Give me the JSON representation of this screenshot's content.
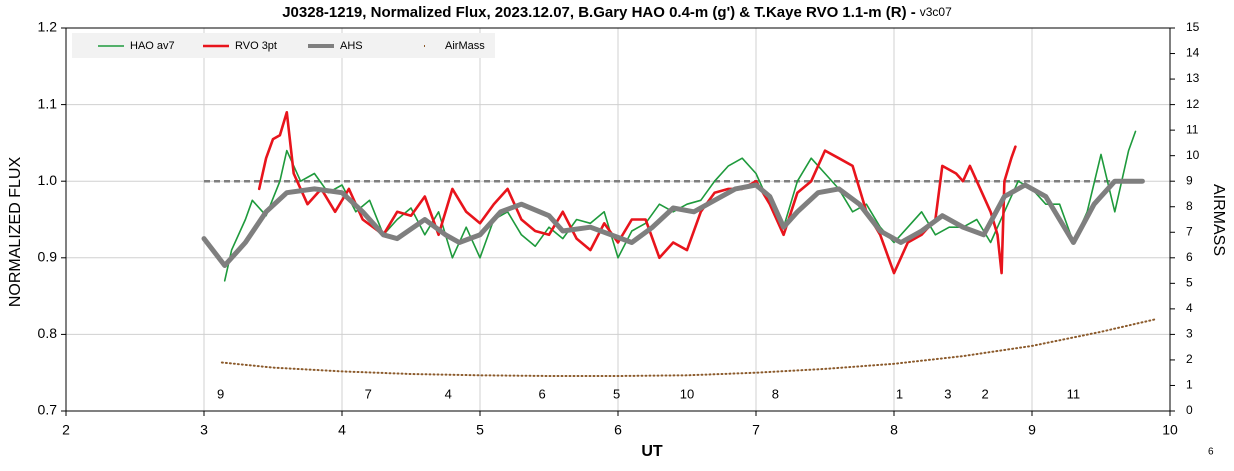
{
  "chart_data": {
    "type": "line",
    "title": "J0328-1219, Normalized Flux, 2023.12.07, B.Gary HAO 0.4-m (g') & T.Kaye RVO 1.1-m (R) -",
    "version": "v3c07",
    "x_label": "UT",
    "y_label": "NORMALIZED FLUX",
    "y2_label": "AIRMASS",
    "corner_note": "6",
    "xlim": [
      2,
      10
    ],
    "xticks": [
      2,
      3,
      4,
      5,
      6,
      7,
      8,
      9,
      10
    ],
    "ylim": [
      0.7,
      1.2
    ],
    "yticks": [
      0.7,
      0.8,
      0.9,
      {
        "value": 1,
        "label": "1.0"
      },
      1.1,
      1.2
    ],
    "y2lim": [
      0,
      15
    ],
    "y2ticks": [
      0,
      1,
      2,
      3,
      4,
      5,
      6,
      7,
      8,
      9,
      10,
      11,
      12,
      13,
      14,
      15
    ],
    "grid": true,
    "legend": "top-left",
    "reference": {
      "y": 1,
      "x": [
        3,
        9.8
      ],
      "color": "#7f7f7f"
    },
    "series": [
      {
        "name": "HAO av7",
        "color": "#1e9a3c",
        "width": 1.6,
        "x": [
          3.15,
          3.2,
          3.3,
          3.35,
          3.45,
          3.55,
          3.6,
          3.7,
          3.8,
          3.9,
          4.0,
          4.1,
          4.2,
          4.3,
          4.4,
          4.5,
          4.6,
          4.7,
          4.8,
          4.9,
          5.0,
          5.1,
          5.2,
          5.3,
          5.4,
          5.5,
          5.6,
          5.7,
          5.8,
          5.9,
          6.0,
          6.1,
          6.2,
          6.3,
          6.4,
          6.5,
          6.6,
          6.7,
          6.8,
          6.9,
          7.0,
          7.1,
          7.2,
          7.3,
          7.4,
          7.5,
          7.6,
          7.7,
          7.8,
          7.9,
          8.0,
          8.1,
          8.2,
          8.3,
          8.4,
          8.5,
          8.6,
          8.7,
          8.8,
          8.9,
          9.0,
          9.1,
          9.2,
          9.3,
          9.4,
          9.5,
          9.6,
          9.7,
          9.75
        ],
        "values": [
          0.87,
          0.91,
          0.95,
          0.975,
          0.955,
          1.0,
          1.04,
          1.0,
          1.01,
          0.985,
          0.995,
          0.96,
          0.975,
          0.93,
          0.95,
          0.965,
          0.93,
          0.96,
          0.9,
          0.94,
          0.9,
          0.95,
          0.96,
          0.93,
          0.915,
          0.94,
          0.925,
          0.95,
          0.945,
          0.96,
          0.9,
          0.935,
          0.945,
          0.97,
          0.96,
          0.97,
          0.975,
          1.0,
          1.02,
          1.03,
          1.01,
          0.97,
          0.94,
          1.0,
          1.03,
          1.01,
          0.99,
          0.96,
          0.97,
          0.94,
          0.92,
          0.94,
          0.96,
          0.93,
          0.94,
          0.94,
          0.95,
          0.92,
          0.96,
          1.0,
          0.99,
          0.97,
          0.97,
          0.92,
          0.96,
          1.035,
          0.96,
          1.04,
          1.065
        ]
      },
      {
        "name": "RVO 3pt",
        "color": "#e8141c",
        "width": 2.6,
        "x": [
          3.4,
          3.45,
          3.5,
          3.55,
          3.6,
          3.65,
          3.75,
          3.85,
          3.95,
          4.05,
          4.15,
          4.3,
          4.4,
          4.5,
          4.6,
          4.7,
          4.8,
          4.9,
          5.0,
          5.1,
          5.2,
          5.3,
          5.4,
          5.5,
          5.6,
          5.7,
          5.8,
          5.9,
          6.0,
          6.1,
          6.2,
          6.3,
          6.4,
          6.5,
          6.6,
          6.7,
          6.8,
          6.9,
          7.0,
          7.1,
          7.2,
          7.3,
          7.4,
          7.5,
          7.6,
          7.7,
          7.8,
          7.9,
          8.0,
          8.1,
          8.2,
          8.3,
          8.35,
          8.45,
          8.5,
          8.55,
          8.6,
          8.7,
          8.75,
          8.78,
          8.8,
          8.85,
          8.88
        ],
        "values": [
          0.99,
          1.03,
          1.055,
          1.06,
          1.09,
          1.01,
          0.97,
          0.99,
          0.96,
          0.99,
          0.95,
          0.93,
          0.96,
          0.955,
          0.98,
          0.93,
          0.99,
          0.96,
          0.945,
          0.97,
          0.99,
          0.95,
          0.935,
          0.93,
          0.96,
          0.925,
          0.91,
          0.945,
          0.92,
          0.95,
          0.95,
          0.9,
          0.92,
          0.91,
          0.96,
          0.985,
          0.99,
          0.99,
          1.0,
          0.97,
          0.93,
          0.985,
          1.0,
          1.04,
          1.03,
          1.02,
          0.96,
          0.93,
          0.88,
          0.92,
          0.93,
          0.95,
          1.02,
          1.01,
          1.0,
          1.02,
          1.0,
          0.96,
          0.93,
          0.88,
          1.0,
          1.03,
          1.045
        ]
      },
      {
        "name": "AHS",
        "color": "#7f7f7f",
        "width": 5,
        "x": [
          3.0,
          3.15,
          3.3,
          3.45,
          3.6,
          3.8,
          4.0,
          4.15,
          4.3,
          4.4,
          4.6,
          4.75,
          4.85,
          5.0,
          5.15,
          5.3,
          5.5,
          5.6,
          5.8,
          5.95,
          6.1,
          6.25,
          6.4,
          6.55,
          6.7,
          6.85,
          7.0,
          7.1,
          7.2,
          7.3,
          7.45,
          7.6,
          7.75,
          7.9,
          8.05,
          8.2,
          8.35,
          8.5,
          8.65,
          8.8,
          8.95,
          9.1,
          9.2,
          9.3,
          9.45,
          9.6,
          9.8
        ],
        "values": [
          0.925,
          0.89,
          0.92,
          0.96,
          0.985,
          0.99,
          0.985,
          0.96,
          0.93,
          0.925,
          0.95,
          0.93,
          0.92,
          0.93,
          0.96,
          0.97,
          0.955,
          0.935,
          0.94,
          0.93,
          0.92,
          0.94,
          0.965,
          0.96,
          0.975,
          0.99,
          0.995,
          0.98,
          0.94,
          0.96,
          0.985,
          0.99,
          0.97,
          0.935,
          0.92,
          0.935,
          0.955,
          0.94,
          0.93,
          0.98,
          0.995,
          0.98,
          0.95,
          0.92,
          0.97,
          1.0,
          1.0
        ]
      },
      {
        "name": "AirMass",
        "color": "#8b5a2b",
        "axis": "y2",
        "width": 1,
        "x": [
          3.13,
          3.5,
          4.0,
          4.5,
          5.0,
          5.5,
          6.0,
          6.5,
          7.0,
          7.5,
          8.0,
          8.5,
          9.0,
          9.5,
          9.9
        ],
        "values": [
          1.9,
          1.7,
          1.55,
          1.45,
          1.4,
          1.37,
          1.37,
          1.4,
          1.5,
          1.65,
          1.85,
          2.15,
          2.55,
          3.1,
          3.6
        ]
      }
    ],
    "annotations": [
      {
        "x": 3.12,
        "text": "9"
      },
      {
        "x": 4.19,
        "text": "7"
      },
      {
        "x": 4.77,
        "text": "4"
      },
      {
        "x": 5.45,
        "text": "6"
      },
      {
        "x": 5.99,
        "text": "5"
      },
      {
        "x": 6.5,
        "text": "10"
      },
      {
        "x": 7.14,
        "text": "8"
      },
      {
        "x": 8.04,
        "text": "1"
      },
      {
        "x": 8.39,
        "text": "3"
      },
      {
        "x": 8.66,
        "text": "2"
      },
      {
        "x": 9.3,
        "text": "11"
      }
    ]
  }
}
